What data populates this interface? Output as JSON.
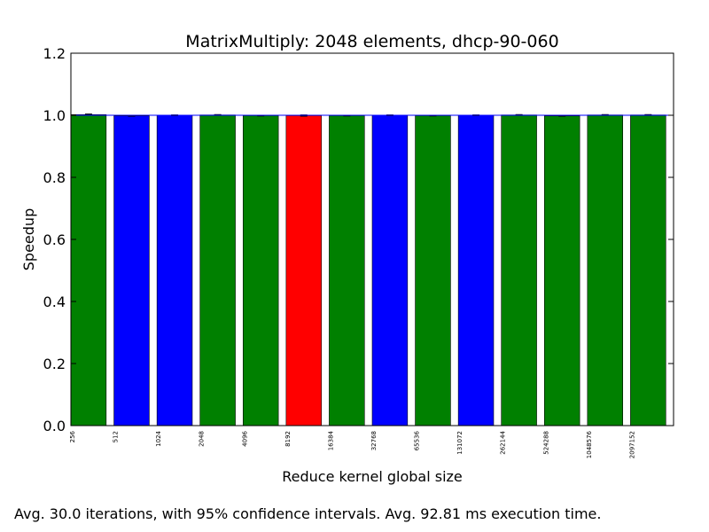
{
  "chart_data": {
    "type": "bar",
    "title": "MatrixMultiply: 2048 elements, dhcp-90-060",
    "xlabel": "Reduce kernel global size",
    "ylabel": "Speedup",
    "ylim": [
      0,
      1.2
    ],
    "yticks": [
      "0.0",
      "0.2",
      "0.4",
      "0.6",
      "0.8",
      "1.0",
      "1.2"
    ],
    "categories": [
      "256",
      "512",
      "1024",
      "2048",
      "4096",
      "8192",
      "16384",
      "32768",
      "65536",
      "131072",
      "262144",
      "524288",
      "1048576",
      "2097152"
    ],
    "values": [
      1.002,
      0.998,
      1.0,
      1.001,
      0.999,
      0.999,
      0.999,
      1.0,
      0.999,
      1.0,
      1.001,
      0.998,
      1.001,
      1.001
    ],
    "errors": [
      0.002,
      0.001,
      0.001,
      0.001,
      0.001,
      0.002,
      0.001,
      0.001,
      0.001,
      0.001,
      0.001,
      0.001,
      0.001,
      0.001
    ],
    "bar_colors": [
      "#008000",
      "#0000ff",
      "#0000ff",
      "#008000",
      "#008000",
      "#ff0000",
      "#008000",
      "#0000ff",
      "#008000",
      "#0000ff",
      "#008000",
      "#008000",
      "#008000",
      "#008000"
    ],
    "reference_line": 1.0,
    "reference_line_color": "#0000ff",
    "grid": false
  },
  "caption": "Avg. 30.0 iterations, with 95% confidence intervals. Avg. 92.81 ms execution time."
}
